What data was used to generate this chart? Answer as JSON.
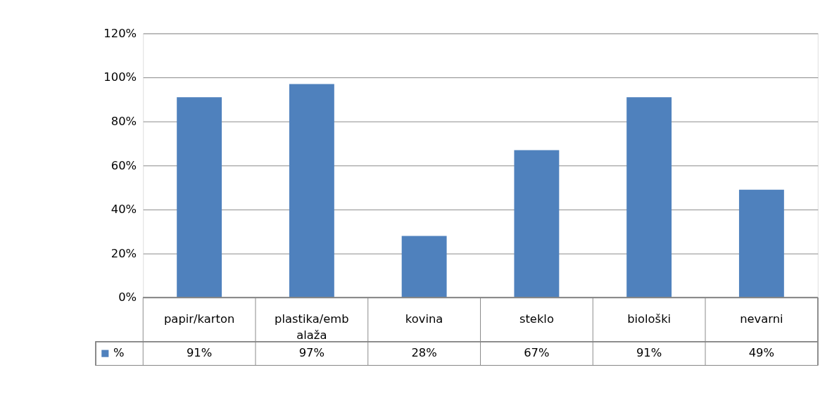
{
  "chart_data": {
    "type": "bar",
    "categories": [
      "papir/karton",
      "plastika/embalaža",
      "kovina",
      "steklo",
      "biološki",
      "nevarni"
    ],
    "series": [
      {
        "name": "%",
        "color": "#4f81bd",
        "values": [
          91,
          97,
          28,
          67,
          91,
          49
        ],
        "value_labels": [
          "91%",
          "97%",
          "28%",
          "67%",
          "91%",
          "49%"
        ]
      }
    ],
    "ylim": [
      0,
      120
    ],
    "yticks": [
      {
        "value": 0,
        "label": "0%"
      },
      {
        "value": 20,
        "label": "20%"
      },
      {
        "value": 40,
        "label": "40%"
      },
      {
        "value": 60,
        "label": "60%"
      },
      {
        "value": 80,
        "label": "80%"
      },
      {
        "value": 100,
        "label": "100%"
      },
      {
        "value": 120,
        "label": "120%"
      }
    ],
    "grid": "y",
    "legend": "bottom left"
  }
}
